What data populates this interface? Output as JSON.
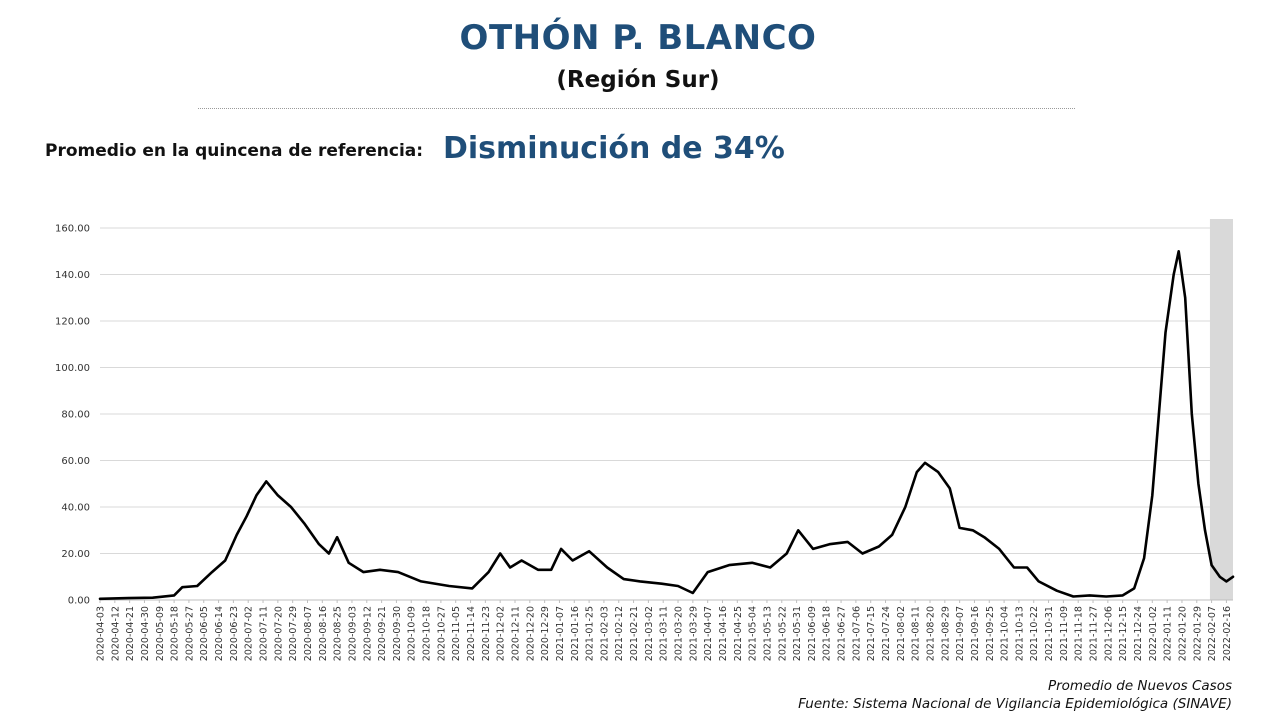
{
  "header": {
    "title": "OTHÓN P. BLANCO",
    "subtitle": "(Región Sur)"
  },
  "reference": {
    "label": "Promedio en la quincena de referencia:",
    "value": "Disminución de 34%"
  },
  "footer": {
    "series_label": "Promedio de Nuevos Casos",
    "source": "Fuente: Sistema Nacional de Vigilancia Epidemiológica (SINAVE)"
  },
  "colors": {
    "title": "#1f4e79",
    "line": "#000000",
    "grid": "#d9d9d9",
    "shade": "#d9d9d9"
  },
  "chart_data": {
    "type": "line",
    "title": "",
    "xlabel": "",
    "ylabel": "",
    "ylim": [
      0,
      160
    ],
    "yticks": [
      "0.00",
      "20.00",
      "40.00",
      "60.00",
      "80.00",
      "100.00",
      "120.00",
      "140.00",
      "160.00"
    ],
    "grid": true,
    "legend": "none",
    "x_start": "2020-04-03",
    "x_end": "2022-02-20",
    "xtick_labels": [
      "2020-04-03",
      "2020-04-12",
      "2020-04-21",
      "2020-04-30",
      "2020-05-09",
      "2020-05-18",
      "2020-05-27",
      "2020-06-05",
      "2020-06-14",
      "2020-06-23",
      "2020-07-02",
      "2020-07-11",
      "2020-07-20",
      "2020-07-29",
      "2020-08-07",
      "2020-08-16",
      "2020-08-25",
      "2020-09-03",
      "2020-09-12",
      "2020-09-21",
      "2020-09-30",
      "2020-10-09",
      "2020-10-18",
      "2020-10-27",
      "2020-11-05",
      "2020-11-14",
      "2020-11-23",
      "2020-12-02",
      "2020-12-11",
      "2020-12-20",
      "2020-12-29",
      "2021-01-07",
      "2021-01-16",
      "2021-01-25",
      "2021-02-03",
      "2021-02-12",
      "2021-02-21",
      "2021-03-02",
      "2021-03-11",
      "2021-03-20",
      "2021-03-29",
      "2021-04-07",
      "2021-04-16",
      "2021-04-25",
      "2021-05-04",
      "2021-05-13",
      "2021-05-22",
      "2021-05-31",
      "2021-06-09",
      "2021-06-18",
      "2021-06-27",
      "2021-07-06",
      "2021-07-15",
      "2021-07-24",
      "2021-08-02",
      "2021-08-11",
      "2021-08-20",
      "2021-08-29",
      "2021-09-07",
      "2021-09-16",
      "2021-09-25",
      "2021-10-04",
      "2021-10-13",
      "2021-10-22",
      "2021-10-31",
      "2021-11-09",
      "2021-11-18",
      "2021-11-27",
      "2021-12-06",
      "2021-12-15",
      "2021-12-24",
      "2022-01-02",
      "2022-01-11",
      "2022-01-20",
      "2022-01-29",
      "2022-02-07",
      "2022-02-16"
    ],
    "shaded_region": [
      "2022-02-06",
      "2022-02-20"
    ],
    "series": [
      {
        "name": "",
        "x": [
          "2020-04-03",
          "2020-04-20",
          "2020-05-05",
          "2020-05-18",
          "2020-05-23",
          "2020-06-01",
          "2020-06-10",
          "2020-06-18",
          "2020-06-25",
          "2020-07-01",
          "2020-07-07",
          "2020-07-13",
          "2020-07-20",
          "2020-07-28",
          "2020-08-05",
          "2020-08-14",
          "2020-08-20",
          "2020-08-25",
          "2020-09-01",
          "2020-09-10",
          "2020-09-20",
          "2020-10-01",
          "2020-10-15",
          "2020-11-01",
          "2020-11-15",
          "2020-11-25",
          "2020-12-02",
          "2020-12-08",
          "2020-12-15",
          "2020-12-25",
          "2021-01-02",
          "2021-01-08",
          "2021-01-15",
          "2021-01-25",
          "2021-02-05",
          "2021-02-15",
          "2021-02-25",
          "2021-03-10",
          "2021-03-20",
          "2021-03-29",
          "2021-04-07",
          "2021-04-20",
          "2021-05-04",
          "2021-05-15",
          "2021-05-25",
          "2021-06-01",
          "2021-06-10",
          "2021-06-20",
          "2021-07-01",
          "2021-07-10",
          "2021-07-20",
          "2021-07-28",
          "2021-08-05",
          "2021-08-12",
          "2021-08-17",
          "2021-08-25",
          "2021-09-01",
          "2021-09-07",
          "2021-09-15",
          "2021-09-22",
          "2021-10-01",
          "2021-10-10",
          "2021-10-18",
          "2021-10-25",
          "2021-11-05",
          "2021-11-15",
          "2021-11-25",
          "2021-12-05",
          "2021-12-15",
          "2021-12-22",
          "2021-12-28",
          "2022-01-02",
          "2022-01-06",
          "2022-01-10",
          "2022-01-15",
          "2022-01-18",
          "2022-01-22",
          "2022-01-26",
          "2022-01-30",
          "2022-02-03",
          "2022-02-07",
          "2022-02-12",
          "2022-02-16",
          "2022-02-20"
        ],
        "y": [
          0.5,
          0.8,
          1.0,
          2.0,
          5.5,
          6.0,
          12.0,
          17.0,
          28.0,
          36.0,
          45.0,
          51.0,
          45.0,
          40.0,
          33.0,
          24.0,
          20.0,
          27.0,
          16.0,
          12.0,
          13.0,
          12.0,
          8.0,
          6.0,
          5.0,
          12.0,
          20.0,
          14.0,
          17.0,
          13.0,
          13.0,
          22.0,
          17.0,
          21.0,
          14.0,
          9.0,
          8.0,
          7.0,
          6.0,
          3.0,
          12.0,
          15.0,
          16.0,
          14.0,
          20.0,
          30.0,
          22.0,
          24.0,
          25.0,
          20.0,
          23.0,
          28.0,
          40.0,
          55.0,
          59.0,
          55.0,
          48.0,
          31.0,
          30.0,
          27.0,
          22.0,
          14.0,
          14.0,
          8.0,
          4.0,
          1.5,
          2.0,
          1.5,
          2.0,
          5.0,
          18.0,
          45.0,
          80.0,
          115.0,
          140.0,
          150.0,
          130.0,
          80.0,
          50.0,
          30.0,
          15.0,
          10.0,
          8.0,
          10.0
        ]
      }
    ]
  }
}
